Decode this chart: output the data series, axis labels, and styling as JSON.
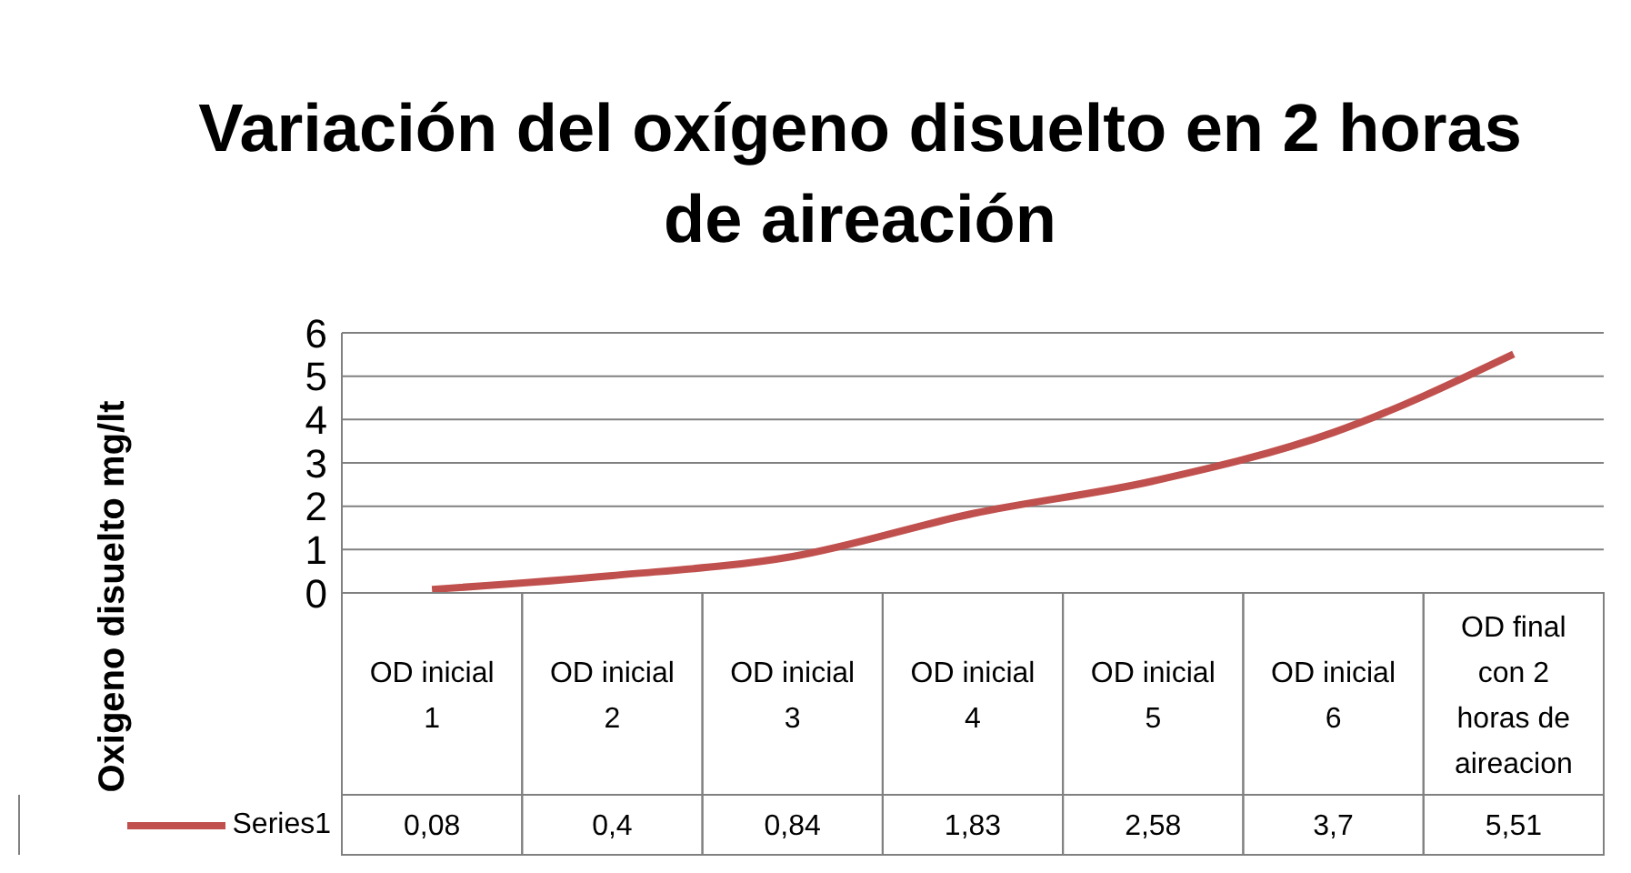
{
  "chart_data": {
    "type": "line",
    "title": "Variación del oxígeno disuelto en 2 horas de aireación",
    "ylabel": "Oxigeno disuelto  mg/lt",
    "categories": [
      "OD inicial 1",
      "OD inicial 2",
      "OD inicial 3",
      "OD inicial 4",
      "OD inicial 5",
      "OD inicial 6",
      "OD final con 2 horas de aireacion"
    ],
    "series": [
      {
        "name": "Series1",
        "color": "#c0504d",
        "values": [
          0.08,
          0.4,
          0.84,
          1.83,
          2.58,
          3.7,
          5.51
        ],
        "value_labels": [
          "0,08",
          "0,4",
          "0,84",
          "1,83",
          "2,58",
          "3,7",
          "5,51"
        ]
      }
    ],
    "ylim": [
      0,
      6
    ],
    "yticks": [
      0,
      1,
      2,
      3,
      4,
      5,
      6
    ],
    "grid": "y",
    "legend": "bottom left",
    "marker": "none",
    "line_style": "solid"
  }
}
